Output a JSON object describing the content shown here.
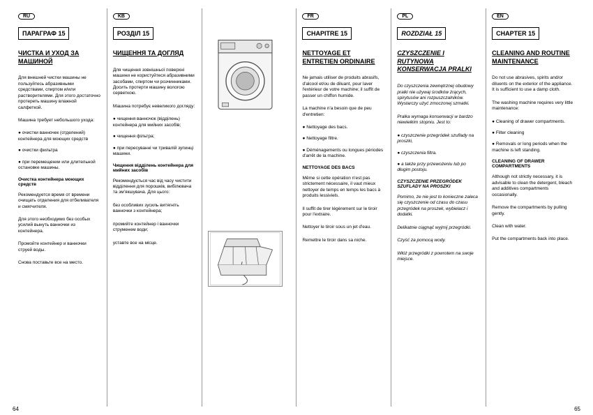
{
  "pagenum_left": "64",
  "pagenum_right": "65",
  "columns": [
    {
      "lang": "RU",
      "chapter": "ПАРАГРАФ 15",
      "heading": "ЧИСТКА И УХОД ЗА МАШИНОЙ",
      "blocks": [
        {
          "type": "para",
          "text": "Для внешней чистки машины не пользуйтесь абразивными средствами, спиртом и/или растворителями. Для этого достаточно протереть машину влажной салфеткой."
        },
        {
          "type": "para",
          "text": "Машина требует небольшого ухода:"
        },
        {
          "type": "bullet",
          "text": "● очистки ванночек (отделений) контейнера для моющих средств"
        },
        {
          "type": "bullet",
          "text": "● очистки фильтра"
        },
        {
          "type": "bullet",
          "text": "● при перемещении или длительной остановке машины."
        },
        {
          "type": "subhead",
          "text": "Очистка контейнера моющих средств"
        },
        {
          "type": "para",
          "text": "Рекомендуется время от времени очищать отделения для отбеливателя и смягчителя."
        },
        {
          "type": "para",
          "text": "Для этого необходимо без особых усилий вынуть ванночки из контейнера."
        },
        {
          "type": "para",
          "text": "Промойте контейнер и ванночки струей воды."
        },
        {
          "type": "para",
          "text": "Снова поставьте все на место."
        }
      ]
    },
    {
      "lang": "KB",
      "chapter": "РОЗДІЛ 15",
      "heading": "ЧИЩЕННЯ ТА ДОГЛЯД",
      "blocks": [
        {
          "type": "para",
          "text": "Для чищення зовнішньої поверхні машини не користуйтеся абразивними засобами, спиртом чи розчинниками. Досить протерти машину вологою серветкою."
        },
        {
          "type": "para",
          "text": "Машина потребує невеликого догляду:"
        },
        {
          "type": "bullet",
          "text": "● чищення ванночок (відділень) контейнера для мийних засобів;"
        },
        {
          "type": "bullet",
          "text": "● чищення фільтра;"
        },
        {
          "type": "bullet",
          "text": "● при пересуванні чи тривалій зупинці машини."
        },
        {
          "type": "subhead",
          "text": "Чищення відділень контейнера для мийних засобів"
        },
        {
          "type": "para",
          "text": "Рекомендується час від часу чистити відділення для порошків, вибілювача та змʼякшувача. Для цього:"
        },
        {
          "type": "para",
          "text": "без особливих зусиль витягніть ванночки з контейнера;"
        },
        {
          "type": "para",
          "text": "промийте контейнер і ванночки струменем води;"
        },
        {
          "type": "para",
          "text": "уставте все на місце."
        }
      ]
    },
    {
      "lang": "IMG",
      "images": true
    },
    {
      "lang": "FR",
      "chapter": "CHAPITRE 15",
      "heading": "NETTOYAGE ET ENTRETIEN ORDINAIRE",
      "blocks": [
        {
          "type": "para",
          "text": "Ne jamais utiliser de produits abrasifs, d'alcool et/ou de diluant, pour laver l'extérieur de votre machine; il suffit de passer un chiffon humide."
        },
        {
          "type": "para",
          "text": "La machine n'a besoin que de peu d'entretien:"
        },
        {
          "type": "bullet",
          "text": "● Nettoyage des bacs."
        },
        {
          "type": "bullet",
          "text": "● Nettoyage filtre."
        },
        {
          "type": "bullet",
          "text": "● Déménagements ou longues périodes d'arrêt de la machine."
        },
        {
          "type": "subhead",
          "text": "NETTOYAGE DES BACS"
        },
        {
          "type": "para",
          "text": "Même si cette opération n'est pas strictement nécessaire, il vaut mieux nettoyer de temps en temps les bacs à produits lessiviels."
        },
        {
          "type": "para",
          "text": "Il suffit de tirer légèrement sur le tiroir pour l'extraire."
        },
        {
          "type": "para",
          "text": "Nettoyer le tiroir sous un jet d'eau."
        },
        {
          "type": "para",
          "text": "Remettre le tiroir dans sa niche."
        }
      ]
    },
    {
      "lang": "PL",
      "italic": true,
      "chapter": "ROZDZIAŁ 15",
      "heading": "CZYSZCZENIE I RUTYNOWA KONSERWACJA PRALKI",
      "blocks": [
        {
          "type": "para",
          "text": "Do czyszczenia zewnętrznej obudowy pralki nie używaj środków żrących, spirytusów ani rozpuszczalników. Wystarczy użyć zmoczonej szmatki."
        },
        {
          "type": "para",
          "text": "Pralka wymaga konserwacji w bardzo niewielkim stopniu. Jest to:"
        },
        {
          "type": "bullet",
          "text": "● czyszczenie przegródek szuflady na proszki,"
        },
        {
          "type": "bullet",
          "text": "● czyszczenia filtra."
        },
        {
          "type": "bullet",
          "text": "● a także przy przewożeniu lub po długim postoju."
        },
        {
          "type": "subhead",
          "text": "CZYSZCZENIE PRZEGRÓDEK SZUFLADY NA PROSZKI"
        },
        {
          "type": "para",
          "text": "Pomimo, że nie jest to konieczne zaleca się czyszczenie od czasu do czasu przegródek na proszek, wybielacz i dodatki."
        },
        {
          "type": "para",
          "text": "Delikatnie ciągnąć wyjmij przegródki."
        },
        {
          "type": "para",
          "text": "Czyść za pomocą wody."
        },
        {
          "type": "para",
          "text": "Włóż przegródki z powrotem na swoje miejsce."
        }
      ]
    },
    {
      "lang": "EN",
      "chapter": "CHAPTER 15",
      "heading": "CLEANING AND ROUTINE MAINTENANCE",
      "blocks": [
        {
          "type": "para",
          "text": "Do not use abrasives, spirits and/or diluents on the exterior of the appliance. It is sufficient to use a damp cloth."
        },
        {
          "type": "para",
          "text": "The washing machine requires very little maintenance:"
        },
        {
          "type": "bullet",
          "text": "● Cleaning of drawer compartments."
        },
        {
          "type": "bullet",
          "text": "● Filter cleaning"
        },
        {
          "type": "bullet",
          "text": "● Removals or long periods when the machine is left standing."
        },
        {
          "type": "subhead",
          "text": "CLEANING OF DRAWER COMPARTMENTS"
        },
        {
          "type": "para",
          "text": "Although not strictly necessary, it is advisable to clean the detergent, bleach and additives compartments occasionally."
        },
        {
          "type": "para",
          "text": "Remove the compartments by pulling gently."
        },
        {
          "type": "para",
          "text": "Clean with water."
        },
        {
          "type": "para",
          "text": "Put the compartments back into place."
        }
      ]
    }
  ]
}
